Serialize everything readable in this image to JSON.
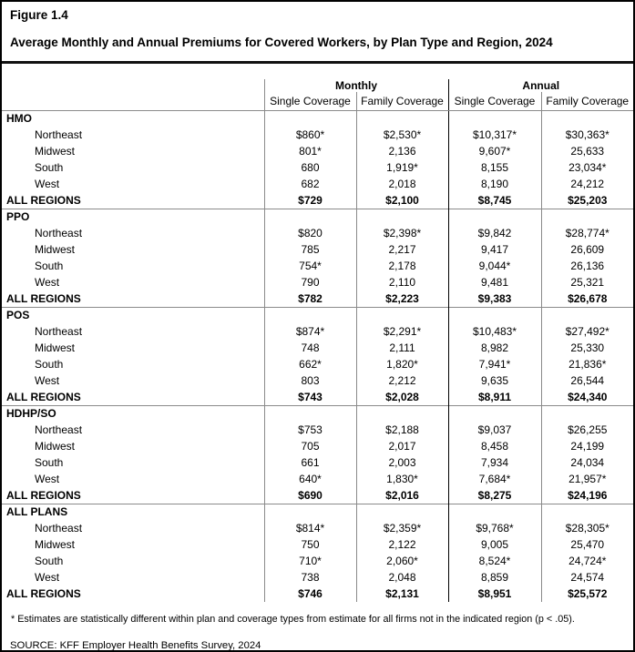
{
  "figure_label": "Figure 1.4",
  "title": "Average Monthly and Annual Premiums for Covered Workers, by Plan Type and Region, 2024",
  "table": {
    "col_groups": [
      {
        "label": "Monthly"
      },
      {
        "label": "Annual"
      }
    ],
    "sub_headers": [
      "Single Coverage",
      "Family Coverage",
      "Single Coverage",
      "Family Coverage"
    ],
    "sections": [
      {
        "name": "HMO",
        "rows": [
          {
            "label": "Northeast",
            "values": [
              "$860*",
              "$2,530*",
              "$10,317*",
              "$30,363*"
            ]
          },
          {
            "label": "Midwest",
            "values": [
              "801*",
              "2,136",
              "9,607*",
              "25,633"
            ]
          },
          {
            "label": "South",
            "values": [
              "680",
              "1,919*",
              "8,155",
              "23,034*"
            ]
          },
          {
            "label": "West",
            "values": [
              "682",
              "2,018",
              "8,190",
              "24,212"
            ]
          },
          {
            "label": "ALL REGIONS",
            "values": [
              "$729",
              "$2,100",
              "$8,745",
              "$25,203"
            ],
            "total": true
          }
        ]
      },
      {
        "name": "PPO",
        "rows": [
          {
            "label": "Northeast",
            "values": [
              "$820",
              "$2,398*",
              "$9,842",
              "$28,774*"
            ]
          },
          {
            "label": "Midwest",
            "values": [
              "785",
              "2,217",
              "9,417",
              "26,609"
            ]
          },
          {
            "label": "South",
            "values": [
              "754*",
              "2,178",
              "9,044*",
              "26,136"
            ]
          },
          {
            "label": "West",
            "values": [
              "790",
              "2,110",
              "9,481",
              "25,321"
            ]
          },
          {
            "label": "ALL REGIONS",
            "values": [
              "$782",
              "$2,223",
              "$9,383",
              "$26,678"
            ],
            "total": true
          }
        ]
      },
      {
        "name": "POS",
        "rows": [
          {
            "label": "Northeast",
            "values": [
              "$874*",
              "$2,291*",
              "$10,483*",
              "$27,492*"
            ]
          },
          {
            "label": "Midwest",
            "values": [
              "748",
              "2,111",
              "8,982",
              "25,330"
            ]
          },
          {
            "label": "South",
            "values": [
              "662*",
              "1,820*",
              "7,941*",
              "21,836*"
            ]
          },
          {
            "label": "West",
            "values": [
              "803",
              "2,212",
              "9,635",
              "26,544"
            ]
          },
          {
            "label": "ALL REGIONS",
            "values": [
              "$743",
              "$2,028",
              "$8,911",
              "$24,340"
            ],
            "total": true
          }
        ]
      },
      {
        "name": "HDHP/SO",
        "rows": [
          {
            "label": "Northeast",
            "values": [
              "$753",
              "$2,188",
              "$9,037",
              "$26,255"
            ]
          },
          {
            "label": "Midwest",
            "values": [
              "705",
              "2,017",
              "8,458",
              "24,199"
            ]
          },
          {
            "label": "South",
            "values": [
              "661",
              "2,003",
              "7,934",
              "24,034"
            ]
          },
          {
            "label": "West",
            "values": [
              "640*",
              "1,830*",
              "7,684*",
              "21,957*"
            ]
          },
          {
            "label": "ALL REGIONS",
            "values": [
              "$690",
              "$2,016",
              "$8,275",
              "$24,196"
            ],
            "total": true
          }
        ]
      },
      {
        "name": "ALL PLANS",
        "rows": [
          {
            "label": "Northeast",
            "values": [
              "$814*",
              "$2,359*",
              "$9,768*",
              "$28,305*"
            ]
          },
          {
            "label": "Midwest",
            "values": [
              "750",
              "2,122",
              "9,005",
              "25,470"
            ]
          },
          {
            "label": "South",
            "values": [
              "710*",
              "2,060*",
              "8,524*",
              "24,724*"
            ]
          },
          {
            "label": "West",
            "values": [
              "738",
              "2,048",
              "8,859",
              "24,574"
            ]
          },
          {
            "label": "ALL REGIONS",
            "values": [
              "$746",
              "$2,131",
              "$8,951",
              "$25,572"
            ],
            "total": true
          }
        ]
      }
    ]
  },
  "footnote": "* Estimates are statistically different within plan and coverage types from estimate for all firms not in the indicated region (p < .05).",
  "source": "SOURCE: KFF Employer Health Benefits Survey, 2024"
}
